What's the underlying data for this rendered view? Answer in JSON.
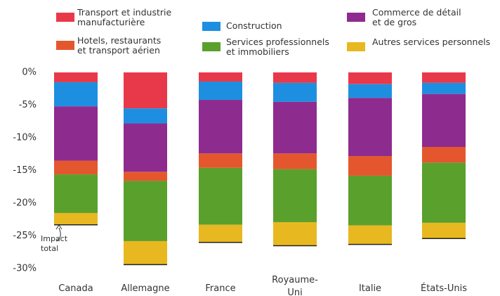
{
  "chart_data": {
    "type": "stacked_bar",
    "categories": [
      "Canada",
      "Allemagne",
      "France",
      "Royaume-\nUni",
      "Italie",
      "États-Unis"
    ],
    "series": [
      {
        "name": "Transport  et industrie\nmanufacturière",
        "color": "#e8394a",
        "values": [
          -1.5,
          -5.5,
          -1.4,
          -1.6,
          -1.8,
          -1.6
        ]
      },
      {
        "name": "Construction",
        "color": "#1e8fe0",
        "values": [
          -3.7,
          -2.3,
          -2.8,
          -2.9,
          -2.1,
          -1.7
        ]
      },
      {
        "name": "Commerce de détail\net de gros",
        "color": "#8e2b8f",
        "values": [
          -8.3,
          -7.4,
          -8.2,
          -7.9,
          -8.9,
          -8.1
        ]
      },
      {
        "name": "Hotels, restaurants\net transport aérien",
        "color": "#e4572e",
        "values": [
          -2.1,
          -1.4,
          -2.2,
          -2.4,
          -3.0,
          -2.4
        ]
      },
      {
        "name": "Services professionnels\net immobiliers",
        "color": "#5aa02c",
        "values": [
          -5.9,
          -9.2,
          -8.7,
          -8.1,
          -7.6,
          -9.2
        ]
      },
      {
        "name": "Autres services personnels",
        "color": "#e8b820",
        "values": [
          -1.8,
          -3.6,
          -2.7,
          -3.6,
          -2.9,
          -2.4
        ]
      }
    ],
    "annotations": [
      "Impact\ntotal"
    ],
    "ylim": [
      -30,
      0
    ],
    "yticks": [
      {
        "value": 0,
        "label": "0%"
      },
      {
        "value": -5,
        "label": "-5%"
      },
      {
        "value": -10,
        "label": "-10%"
      },
      {
        "value": -15,
        "label": "-15%"
      },
      {
        "value": -20,
        "label": "-20%"
      },
      {
        "value": -25,
        "label": "-25%"
      },
      {
        "value": -30,
        "label": "-30%"
      }
    ],
    "grid": false
  }
}
